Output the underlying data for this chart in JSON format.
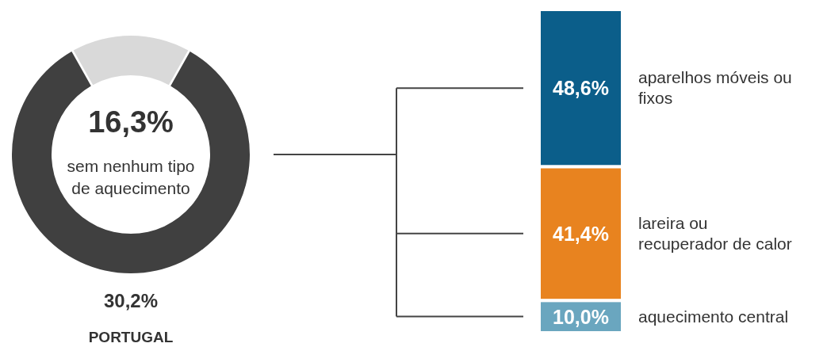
{
  "chart_data": [
    {
      "type": "donut",
      "categories": [
        null,
        null
      ],
      "values": [
        16.3,
        83.7
      ],
      "colors": [
        "#d9d9d9",
        "#404040"
      ],
      "value_labels": [
        "16,3%",
        null
      ],
      "annotations": [
        "sem nenhum tipo de aquecimento",
        "30,2%",
        "PORTUGAL"
      ]
    },
    {
      "type": "bar",
      "stacked": true,
      "categories": [
        null
      ],
      "series": [
        {
          "name": "aquecimento central",
          "color": "#6aa6bf",
          "values": [
            10.0
          ],
          "value_labels": [
            "10,0%"
          ]
        },
        {
          "name": "lareira ou recuperador de calor",
          "color": "#e8831f",
          "values": [
            41.4
          ],
          "value_labels": [
            "41,4%"
          ]
        },
        {
          "name": "aparelhos móveis ou fixos",
          "color": "#0b5e8a",
          "values": [
            48.6
          ],
          "value_labels": [
            "48,6%"
          ]
        }
      ]
    }
  ]
}
